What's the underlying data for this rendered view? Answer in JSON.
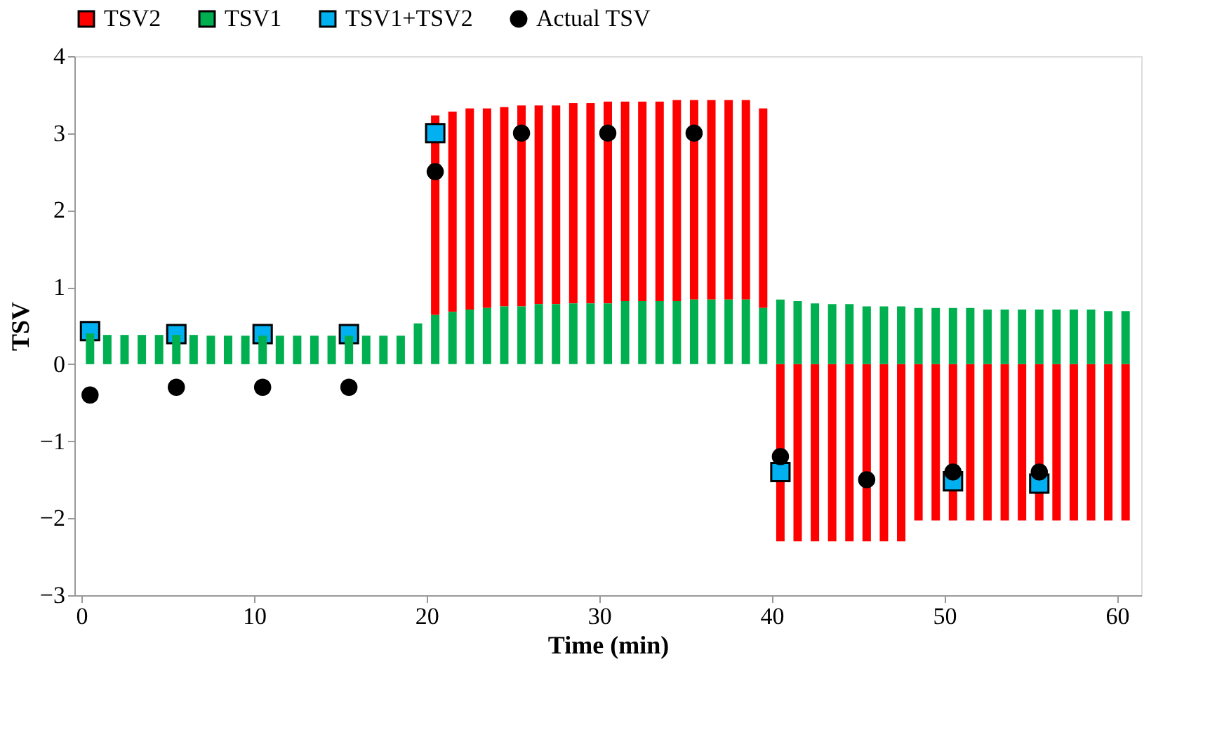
{
  "chart_data": {
    "type": "bar",
    "stacked": true,
    "xlabel": "Time (min)",
    "ylabel": "TSV",
    "x": [
      0.5,
      1.5,
      2.5,
      3.5,
      4.5,
      5.5,
      6.5,
      7.5,
      8.5,
      9.5,
      10.5,
      11.5,
      12.5,
      13.5,
      14.5,
      15.5,
      16.5,
      17.5,
      18.5,
      19.5,
      20.5,
      21.5,
      22.5,
      23.5,
      24.5,
      25.5,
      26.5,
      27.5,
      28.5,
      29.5,
      30.5,
      31.5,
      32.5,
      33.5,
      34.5,
      35.5,
      36.5,
      37.5,
      38.5,
      39.5,
      40.5,
      41.5,
      42.5,
      43.5,
      44.5,
      45.5,
      46.5,
      47.5,
      48.5,
      49.5,
      50.5,
      51.5,
      52.5,
      53.5,
      54.5,
      55.5,
      56.5,
      57.5,
      58.5,
      59.5,
      60.5
    ],
    "series": [
      {
        "name": "TSV1",
        "type": "bar",
        "color": "#00b050",
        "values": [
          0.4,
          0.38,
          0.38,
          0.38,
          0.38,
          0.38,
          0.38,
          0.37,
          0.37,
          0.37,
          0.37,
          0.37,
          0.37,
          0.37,
          0.37,
          0.37,
          0.37,
          0.37,
          0.37,
          0.53,
          0.64,
          0.68,
          0.71,
          0.73,
          0.75,
          0.75,
          0.78,
          0.78,
          0.79,
          0.79,
          0.79,
          0.82,
          0.82,
          0.82,
          0.82,
          0.84,
          0.84,
          0.84,
          0.84,
          0.73,
          0.84,
          0.82,
          0.79,
          0.78,
          0.78,
          0.75,
          0.75,
          0.75,
          0.73,
          0.73,
          0.73,
          0.73,
          0.71,
          0.71,
          0.71,
          0.71,
          0.71,
          0.71,
          0.71,
          0.69,
          0.69
        ]
      },
      {
        "name": "TSV2",
        "type": "bar",
        "color": "#ff0000",
        "values": [
          null,
          null,
          null,
          null,
          null,
          null,
          null,
          null,
          null,
          null,
          null,
          null,
          null,
          null,
          null,
          null,
          null,
          null,
          null,
          null,
          2.59,
          2.6,
          2.61,
          2.59,
          2.59,
          2.61,
          2.58,
          2.58,
          2.6,
          2.6,
          2.62,
          2.59,
          2.59,
          2.59,
          2.61,
          2.59,
          2.59,
          2.59,
          2.59,
          2.59,
          -2.3,
          -2.3,
          -2.3,
          -2.3,
          -2.3,
          -2.3,
          -2.3,
          -2.3,
          -2.03,
          -2.03,
          -2.03,
          -2.03,
          -2.03,
          -2.03,
          -2.03,
          -2.03,
          -2.03,
          -2.03,
          -2.03,
          -2.03,
          -2.03
        ]
      },
      {
        "name": "TSV1+TSV2",
        "type": "scatter",
        "marker": "square",
        "color": "#00b0f0",
        "x": [
          0.5,
          5.5,
          10.5,
          15.5,
          20.5,
          40.5,
          50.5,
          55.5
        ],
        "values": [
          0.43,
          0.39,
          0.39,
          0.39,
          3.0,
          -1.4,
          -1.52,
          -1.55
        ]
      },
      {
        "name": "Actual TSV",
        "type": "scatter",
        "marker": "circle",
        "color": "#000000",
        "x": [
          0.5,
          5.5,
          10.5,
          15.5,
          20.5,
          25.5,
          30.5,
          35.5,
          40.5,
          45.5,
          50.5,
          55.5
        ],
        "values": [
          -0.4,
          -0.3,
          -0.3,
          -0.3,
          2.5,
          3.0,
          3.0,
          3.0,
          -1.2,
          -1.5,
          -1.4,
          -1.4
        ]
      }
    ],
    "xlim": [
      0,
      61
    ],
    "xticks": [
      0,
      10,
      20,
      30,
      40,
      50,
      60
    ],
    "ylim": [
      -3,
      4
    ],
    "yticks": [
      -3,
      -2,
      -1,
      0,
      1,
      2,
      3,
      4
    ],
    "legend": "top",
    "grid": false
  }
}
